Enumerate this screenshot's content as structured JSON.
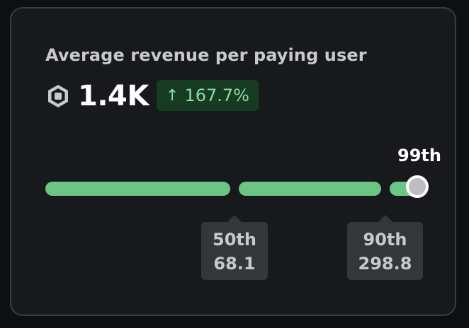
{
  "card": {
    "title": "Average revenue per paying user",
    "currency_icon": "robux-icon",
    "value": "1.4K",
    "delta": {
      "arrow": "↑",
      "text": "167.7%",
      "direction": "up",
      "color": "#8fdba4",
      "background": "#163a22"
    }
  },
  "percentile_bar": {
    "bar_color": "#6cc485",
    "current_percentile": "99th",
    "markers": [
      {
        "percentile": "50th",
        "value": "68.1"
      },
      {
        "percentile": "90th",
        "value": "298.8"
      }
    ]
  }
}
